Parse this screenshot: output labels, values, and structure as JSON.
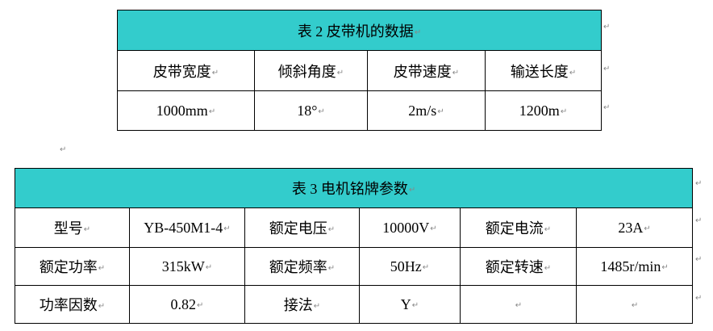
{
  "paragraph_mark": "↵",
  "table2": {
    "caption": "表 2  皮带机的数据",
    "header_color": "#33CCCC",
    "headers": [
      "皮带宽度",
      "倾斜角度",
      "皮带速度",
      "输送长度"
    ],
    "values": [
      "1000mm",
      "18°",
      "2m/s",
      "1200m"
    ]
  },
  "table3": {
    "caption": "表 3 电机铭牌参数",
    "header_color": "#33CCCC",
    "rows": [
      [
        "型号",
        "YB-450M1-4",
        "额定电压",
        "10000V",
        "额定电流",
        "23A"
      ],
      [
        "额定功率",
        "315kW",
        "额定频率",
        "50Hz",
        "额定转速",
        "1485r/min"
      ],
      [
        "功率因数",
        "0.82",
        "接法",
        "Y",
        "",
        ""
      ]
    ]
  }
}
